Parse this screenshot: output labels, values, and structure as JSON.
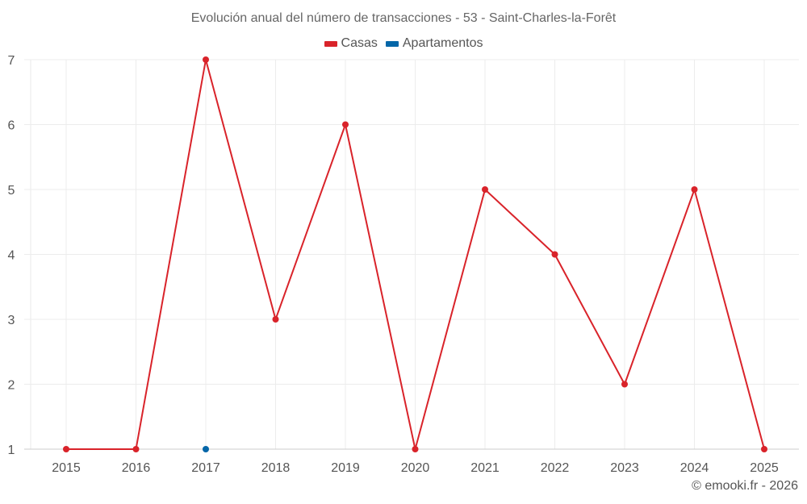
{
  "chart_data": {
    "type": "line",
    "title": "Evolución anual del número de transacciones - 53 - Saint-Charles-la-Forêt",
    "categories": [
      "2015",
      "2016",
      "2017",
      "2018",
      "2019",
      "2020",
      "2021",
      "2022",
      "2023",
      "2024",
      "2025"
    ],
    "series": [
      {
        "name": "Casas",
        "color": "#d9232a",
        "values": [
          1,
          1,
          7,
          3,
          6,
          1,
          5,
          4,
          2,
          5,
          1
        ]
      },
      {
        "name": "Apartamentos",
        "color": "#0466a8",
        "values": [
          null,
          null,
          1,
          null,
          null,
          null,
          null,
          null,
          null,
          null,
          null
        ]
      }
    ],
    "yticks": [
      1,
      2,
      3,
      4,
      5,
      6,
      7
    ],
    "ylim": [
      1,
      7
    ],
    "xlabel": "",
    "ylabel": "",
    "grid": true,
    "legend": "top-center"
  },
  "credit": "© emooki.fr - 2026"
}
